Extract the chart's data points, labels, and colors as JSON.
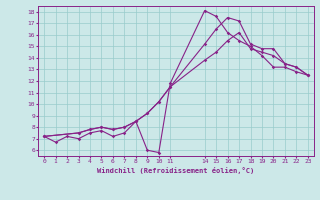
{
  "background_color": "#cce8e8",
  "grid_color": "#99cccc",
  "line_color": "#882288",
  "marker": "D",
  "markersize": 1.8,
  "linewidth": 0.8,
  "xlabel": "Windchill (Refroidissement éolien,°C)",
  "xlim": [
    -0.5,
    23.5
  ],
  "ylim": [
    5.5,
    18.5
  ],
  "xticks": [
    0,
    1,
    2,
    3,
    4,
    5,
    6,
    7,
    8,
    9,
    10,
    11,
    14,
    15,
    16,
    17,
    18,
    19,
    20,
    21,
    22,
    23
  ],
  "yticks": [
    6,
    7,
    8,
    9,
    10,
    11,
    12,
    13,
    14,
    15,
    16,
    17,
    18
  ],
  "line1_x": [
    0,
    1,
    2,
    3,
    4,
    5,
    6,
    7,
    8,
    9,
    10,
    11,
    14,
    15,
    16,
    17,
    18,
    19,
    20,
    21,
    22,
    23
  ],
  "line1_y": [
    7.2,
    6.7,
    7.2,
    7.0,
    7.5,
    7.7,
    7.2,
    7.5,
    8.5,
    6.0,
    5.8,
    11.8,
    18.1,
    17.6,
    16.2,
    15.5,
    15.0,
    14.2,
    13.2,
    13.2,
    12.8,
    12.5
  ],
  "line2_x": [
    0,
    3,
    4,
    5,
    6,
    7,
    8,
    9,
    10,
    11,
    14,
    15,
    16,
    17,
    18,
    19,
    20,
    21,
    22,
    23
  ],
  "line2_y": [
    7.2,
    7.5,
    7.8,
    8.0,
    7.8,
    8.0,
    8.5,
    9.2,
    10.2,
    11.5,
    15.2,
    16.5,
    17.5,
    17.2,
    15.2,
    14.8,
    14.8,
    13.5,
    13.2,
    12.5
  ],
  "line3_x": [
    0,
    3,
    4,
    5,
    6,
    7,
    8,
    9,
    10,
    11,
    14,
    15,
    16,
    17,
    18,
    19,
    20,
    21,
    22,
    23
  ],
  "line3_y": [
    7.2,
    7.5,
    7.8,
    8.0,
    7.8,
    8.0,
    8.5,
    9.2,
    10.2,
    11.5,
    13.8,
    14.5,
    15.5,
    16.2,
    14.8,
    14.5,
    14.2,
    13.5,
    13.2,
    12.5
  ]
}
